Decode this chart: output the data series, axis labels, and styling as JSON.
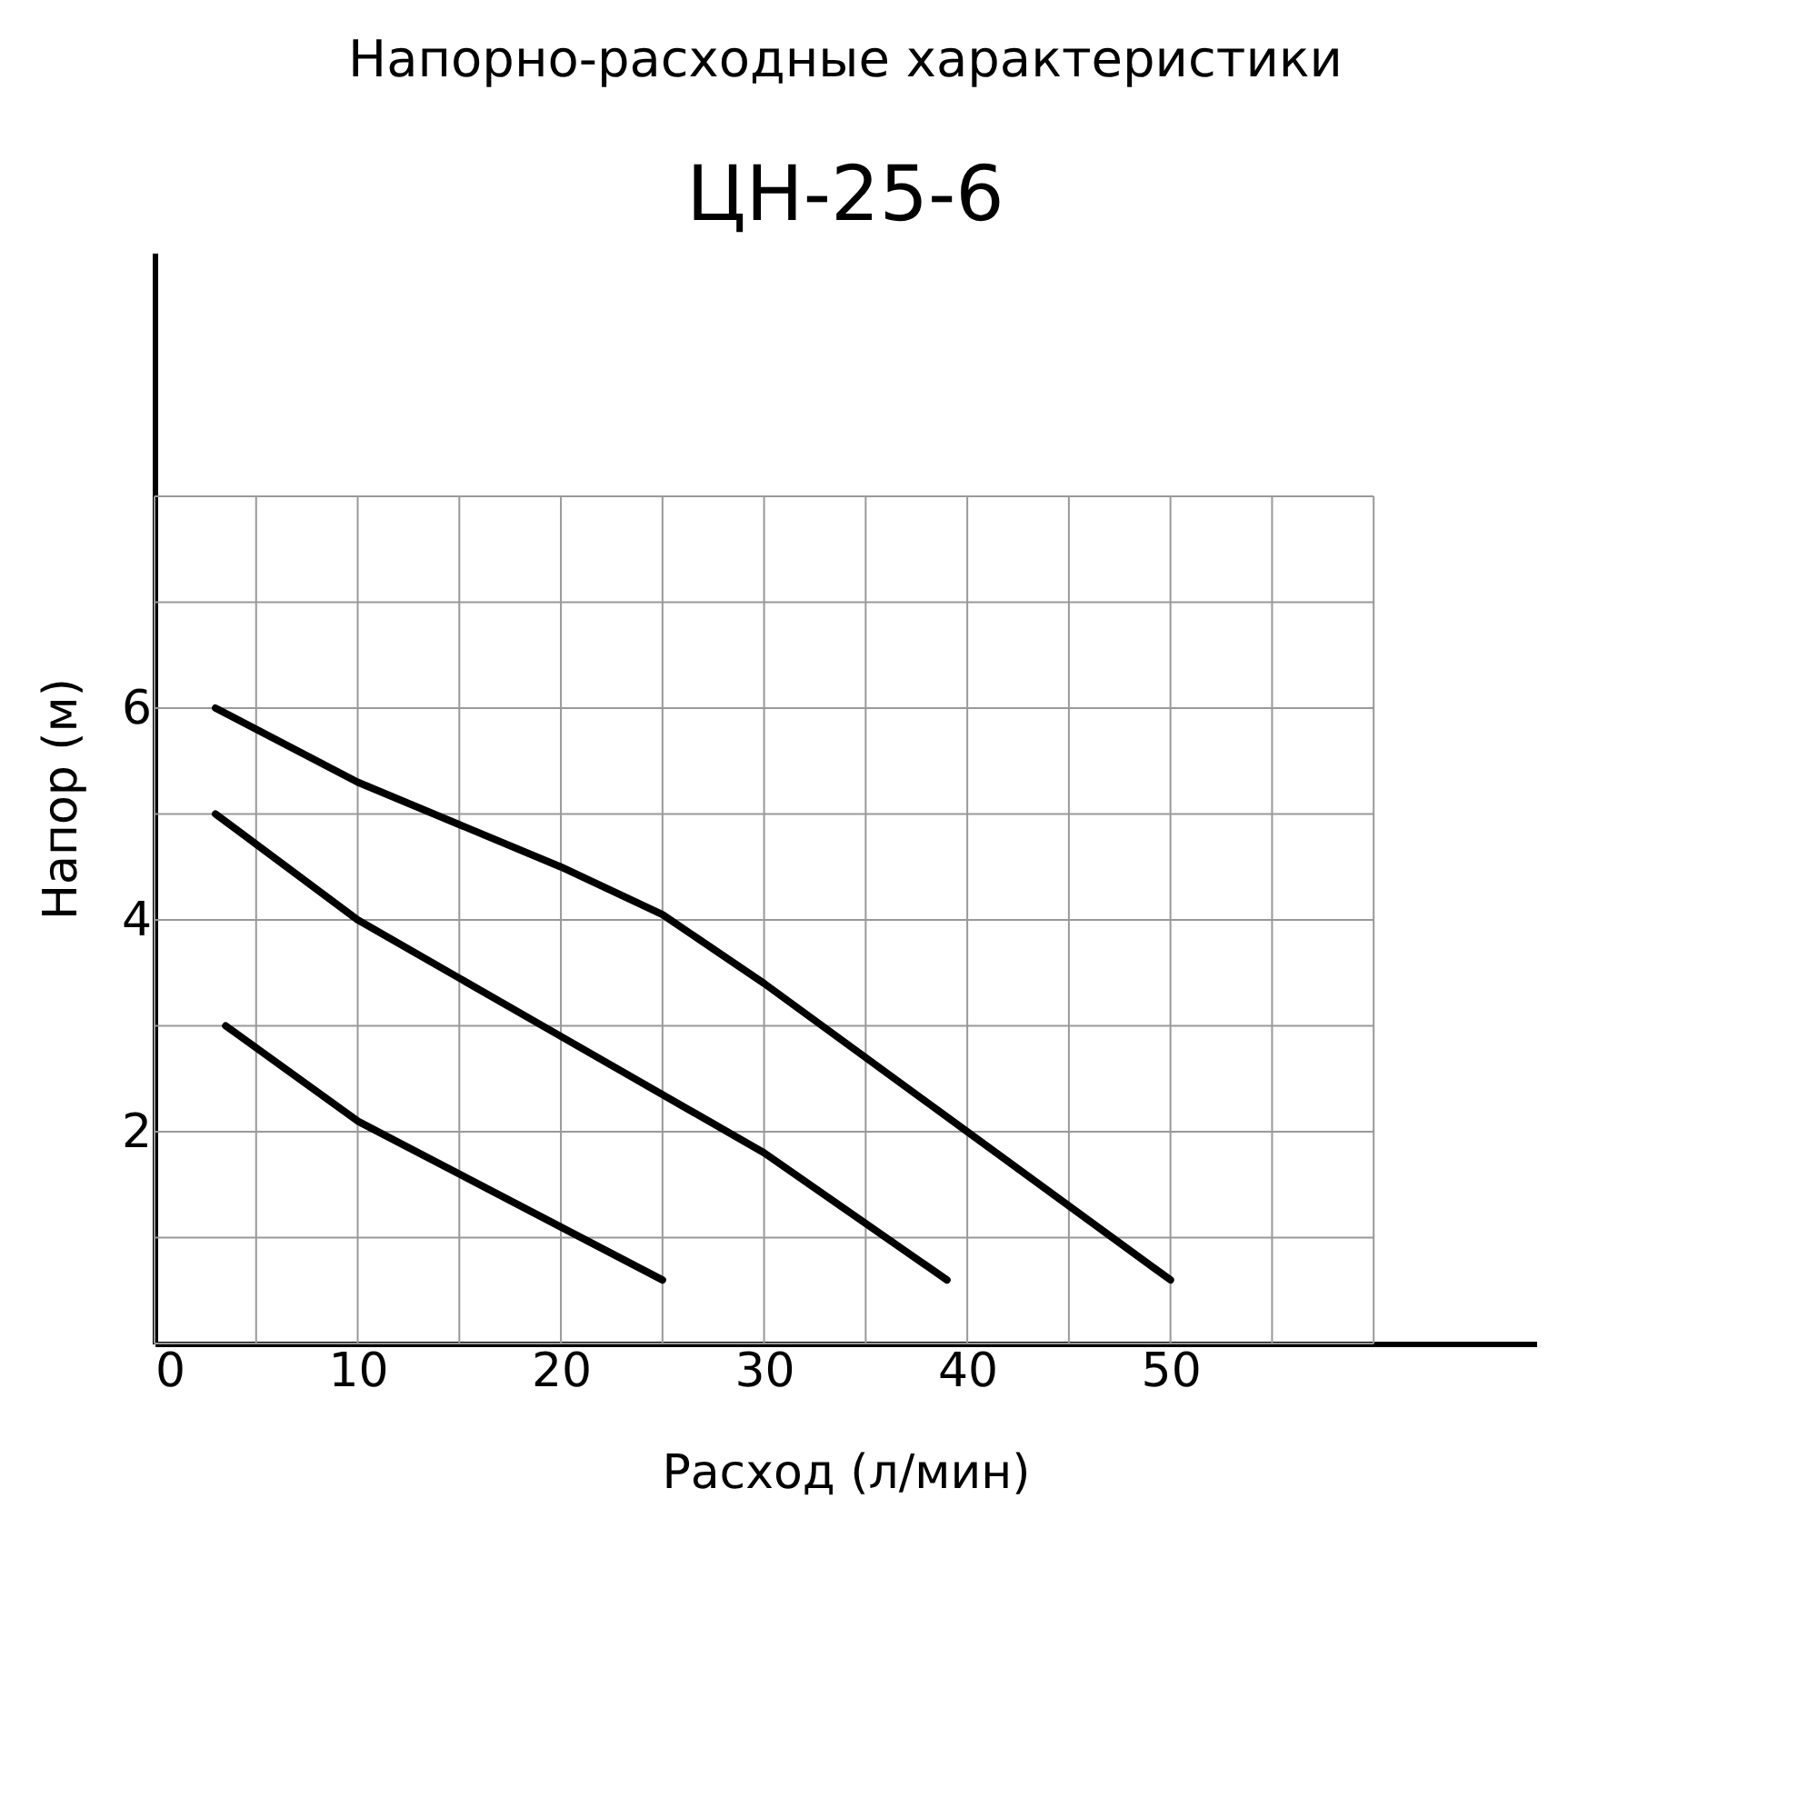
{
  "chart_data": {
    "type": "line",
    "title": "Напорно-расходные характеристики",
    "subtitle": "ЦН-25-6",
    "xlabel": "Расход (л/мин)",
    "ylabel": "Напор (м)",
    "xlim": [
      0,
      68
    ],
    "ylim": [
      0,
      10.3
    ],
    "xticks": [
      0,
      {
        "value": 5,
        "label": null
      },
      10,
      {
        "value": 15,
        "label": null
      },
      20,
      {
        "value": 25,
        "label": null
      },
      30,
      {
        "value": 35,
        "label": null
      },
      40,
      {
        "value": 45,
        "label": null
      },
      50,
      {
        "value": 55,
        "label": null
      },
      {
        "value": 60,
        "label": null
      }
    ],
    "yticks": [
      {
        "value": 0,
        "label": null
      },
      {
        "value": 1,
        "label": null
      },
      2,
      {
        "value": 3,
        "label": null
      },
      4,
      {
        "value": 5,
        "label": null
      },
      6,
      {
        "value": 7,
        "label": null
      },
      {
        "value": 8,
        "label": null
      }
    ],
    "grid": true,
    "legend": false,
    "marker": "none",
    "line_style": "solid",
    "series": [
      {
        "color": "#000000",
        "x": [
          3,
          10,
          20,
          25,
          30,
          40,
          50
        ],
        "values": [
          6,
          5.3,
          4.5,
          4.05,
          3.4,
          2,
          0.6
        ]
      },
      {
        "color": "#000000",
        "x": [
          3,
          10,
          20,
          30,
          39
        ],
        "values": [
          5,
          4,
          2.9,
          1.8,
          0.6
        ]
      },
      {
        "color": "#000000",
        "x": [
          3.5,
          10,
          20,
          25
        ],
        "values": [
          3,
          2.1,
          1.1,
          0.6
        ]
      }
    ]
  }
}
